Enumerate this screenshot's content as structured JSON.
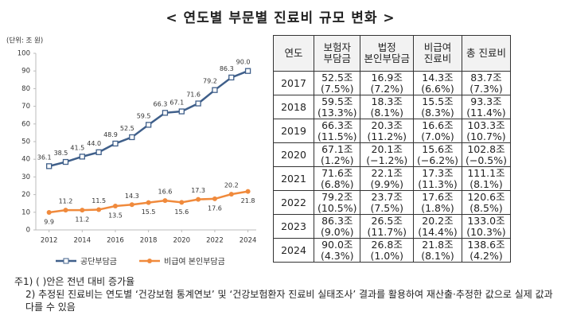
{
  "title": "< 연도별 부문별 진료비 규모 변화 >",
  "chart_data": {
    "type": "line",
    "y_label": "(단위: 조 원)",
    "x": [
      2012,
      2013,
      2014,
      2015,
      2016,
      2017,
      2018,
      2019,
      2020,
      2021,
      2022,
      2023,
      2024
    ],
    "xlim": [
      2011.2,
      2024.5
    ],
    "xticks": [
      2012,
      2014,
      2016,
      2018,
      2020,
      2022,
      2024
    ],
    "ylim": [
      0,
      100
    ],
    "yticks": [
      0,
      10,
      20,
      30,
      40,
      50,
      60,
      70,
      80,
      90,
      100
    ],
    "grid": false,
    "legend": "bottom",
    "series": [
      {
        "name": "공단부담금",
        "color": "#3f5f8a",
        "marker": "square",
        "values": [
          36.1,
          38.5,
          41.5,
          44.0,
          48.9,
          52.5,
          59.5,
          66.3,
          67.1,
          71.6,
          79.2,
          86.3,
          90.0
        ],
        "value_labels": [
          "36.1",
          "38.5",
          "41.5",
          "44.0",
          "48.9",
          "52.5",
          "59.5",
          "66.3",
          "67.1",
          "71.6",
          "79.2",
          "86.3",
          "90.0"
        ]
      },
      {
        "name": "비급여 본인부담금",
        "color": "#f08a3c",
        "marker": "circle",
        "values": [
          9.9,
          11.2,
          11.2,
          11.5,
          13.5,
          14.3,
          15.5,
          16.6,
          15.6,
          17.3,
          17.6,
          20.2,
          21.8
        ]
      }
    ]
  },
  "table": {
    "headers": [
      [
        "연도"
      ],
      [
        "보험자",
        "부담금"
      ],
      [
        "법정",
        "본인부담금"
      ],
      [
        "비급여",
        "진료비"
      ],
      [
        "총 진료비"
      ]
    ],
    "rows": [
      {
        "year": "2017",
        "cells": [
          [
            "52.5조",
            "(7.5%)"
          ],
          [
            "16.9조",
            "(7.2%)"
          ],
          [
            "14.3조",
            "(6.6%)"
          ],
          [
            "83.7조",
            "(7.3%)"
          ]
        ]
      },
      {
        "year": "2018",
        "cells": [
          [
            "59.5조",
            "(13.3%)"
          ],
          [
            "18.3조",
            "(8.1%)"
          ],
          [
            "15.5조",
            "(8.3%)"
          ],
          [
            "93.3조",
            "(11.4%)"
          ]
        ]
      },
      {
        "year": "2019",
        "cells": [
          [
            "66.3조",
            "(11.5%)"
          ],
          [
            "20.3조",
            "(11.2%)"
          ],
          [
            "16.6조",
            "(7.0%)"
          ],
          [
            "103.3조",
            "(10.7%)"
          ]
        ]
      },
      {
        "year": "2020",
        "cells": [
          [
            "67.1조",
            "(1.2%)"
          ],
          [
            "20.1조",
            "(−1.2%)"
          ],
          [
            "15.6조",
            "(−6.2%)"
          ],
          [
            "102.8조",
            "(−0.5%)"
          ]
        ]
      },
      {
        "year": "2021",
        "cells": [
          [
            "71.6조",
            "(6.8%)"
          ],
          [
            "22.1조",
            "(9.9%)"
          ],
          [
            "17.3조",
            "(11.3%)"
          ],
          [
            "111.1조",
            "(8.1%)"
          ]
        ]
      },
      {
        "year": "2022",
        "cells": [
          [
            "79.2조",
            "(10.5%)"
          ],
          [
            "23.7조",
            "(7.5%)"
          ],
          [
            "17.6조",
            "(1.8%)"
          ],
          [
            "120.6조",
            "(8.5%)"
          ]
        ]
      },
      {
        "year": "2023",
        "cells": [
          [
            "86.3조",
            "(9.0%)"
          ],
          [
            "26.5조",
            "(11.7%)"
          ],
          [
            "20.2조",
            "(14.4%)"
          ],
          [
            "133.0조",
            "(10.3%)"
          ]
        ]
      },
      {
        "year": "2024",
        "cells": [
          [
            "90.0조",
            "(4.3%)"
          ],
          [
            "26.8조",
            "(1.0%)"
          ],
          [
            "21.8조",
            "(8.1%)"
          ],
          [
            "138.6조",
            "(4.2%)"
          ]
        ]
      }
    ]
  },
  "notes": [
    "주1) ( )안은 전년 대비 증가율",
    "2) 추정된 진료비는 연도별 ‘건강보험 통계연보’ 및 ‘건강보험환자 진료비 실태조사’ 결과를 활용하여 재산출·추정한 값으로 실제 값과 다를 수 있음"
  ]
}
